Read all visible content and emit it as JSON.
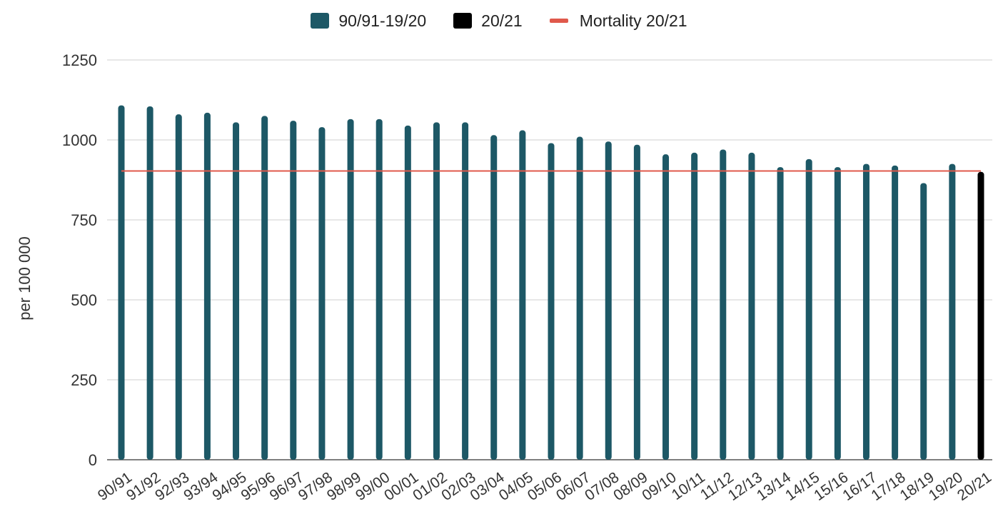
{
  "chart_data": {
    "type": "bar",
    "title": "",
    "xlabel": "",
    "ylabel": "per 100 000",
    "ylim": [
      0,
      1250
    ],
    "yticks": [
      0,
      250,
      500,
      750,
      1000,
      1250
    ],
    "grid": true,
    "legend_placement": "top-center",
    "categories": [
      "90/91",
      "91/92",
      "92/93",
      "93/94",
      "94/95",
      "95/96",
      "96/97",
      "97/98",
      "98/99",
      "99/00",
      "00/01",
      "01/02",
      "02/03",
      "03/04",
      "04/05",
      "05/06",
      "06/07",
      "07/08",
      "08/09",
      "09/10",
      "10/11",
      "11/12",
      "12/13",
      "13/14",
      "14/15",
      "15/16",
      "16/17",
      "17/18",
      "18/19",
      "19/20",
      "20/21"
    ],
    "series": [
      {
        "name": "90/91-19/20",
        "color": "#1d5866",
        "values": [
          1108,
          1105,
          1080,
          1085,
          1055,
          1075,
          1060,
          1040,
          1065,
          1065,
          1045,
          1055,
          1055,
          1015,
          1030,
          990,
          1010,
          995,
          985,
          955,
          960,
          970,
          960,
          915,
          940,
          915,
          925,
          920,
          865,
          925,
          null
        ]
      },
      {
        "name": "20/21",
        "color": "#000000",
        "values": [
          null,
          null,
          null,
          null,
          null,
          null,
          null,
          null,
          null,
          null,
          null,
          null,
          null,
          null,
          null,
          null,
          null,
          null,
          null,
          null,
          null,
          null,
          null,
          null,
          null,
          null,
          null,
          null,
          null,
          null,
          900
        ]
      }
    ],
    "reference_line": {
      "name": "Mortality 20/21",
      "value": 903,
      "color": "#e0594b"
    }
  }
}
